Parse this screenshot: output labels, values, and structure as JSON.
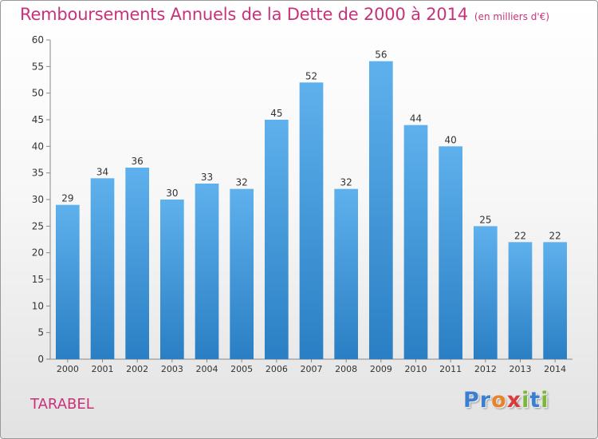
{
  "title": "Remboursements Annuels de la Dette de 2000 à 2014",
  "subtitle": "(en milliers d'€)",
  "commune": "TARABEL",
  "logo": {
    "text": "Proxiti",
    "letters": [
      {
        "ch": "P",
        "color": "#3a7fd1"
      },
      {
        "ch": "r",
        "color": "#3a7fd1"
      },
      {
        "ch": "o",
        "color": "#e8832a"
      },
      {
        "ch": "x",
        "color": "#d93a3a"
      },
      {
        "ch": "i",
        "color": "#7bb83a"
      },
      {
        "ch": "t",
        "color": "#3a7fd1"
      },
      {
        "ch": "i",
        "color": "#7bb83a"
      }
    ]
  },
  "colors": {
    "bar_light": "#5eb1ec",
    "bar_dark": "#2a7fc4",
    "accent": "#c8327a"
  },
  "chart_data": {
    "type": "bar",
    "categories": [
      "2000",
      "2001",
      "2002",
      "2003",
      "2004",
      "2005",
      "2006",
      "2007",
      "2008",
      "2009",
      "2010",
      "2011",
      "2012",
      "2013",
      "2014"
    ],
    "values": [
      29,
      34,
      36,
      30,
      33,
      32,
      45,
      52,
      32,
      56,
      44,
      40,
      25,
      22,
      22
    ],
    "ylim": [
      0,
      60
    ],
    "yticks": [
      0,
      5,
      10,
      15,
      20,
      25,
      30,
      35,
      40,
      45,
      50,
      55,
      60
    ],
    "grid": false,
    "data_labels": true
  }
}
